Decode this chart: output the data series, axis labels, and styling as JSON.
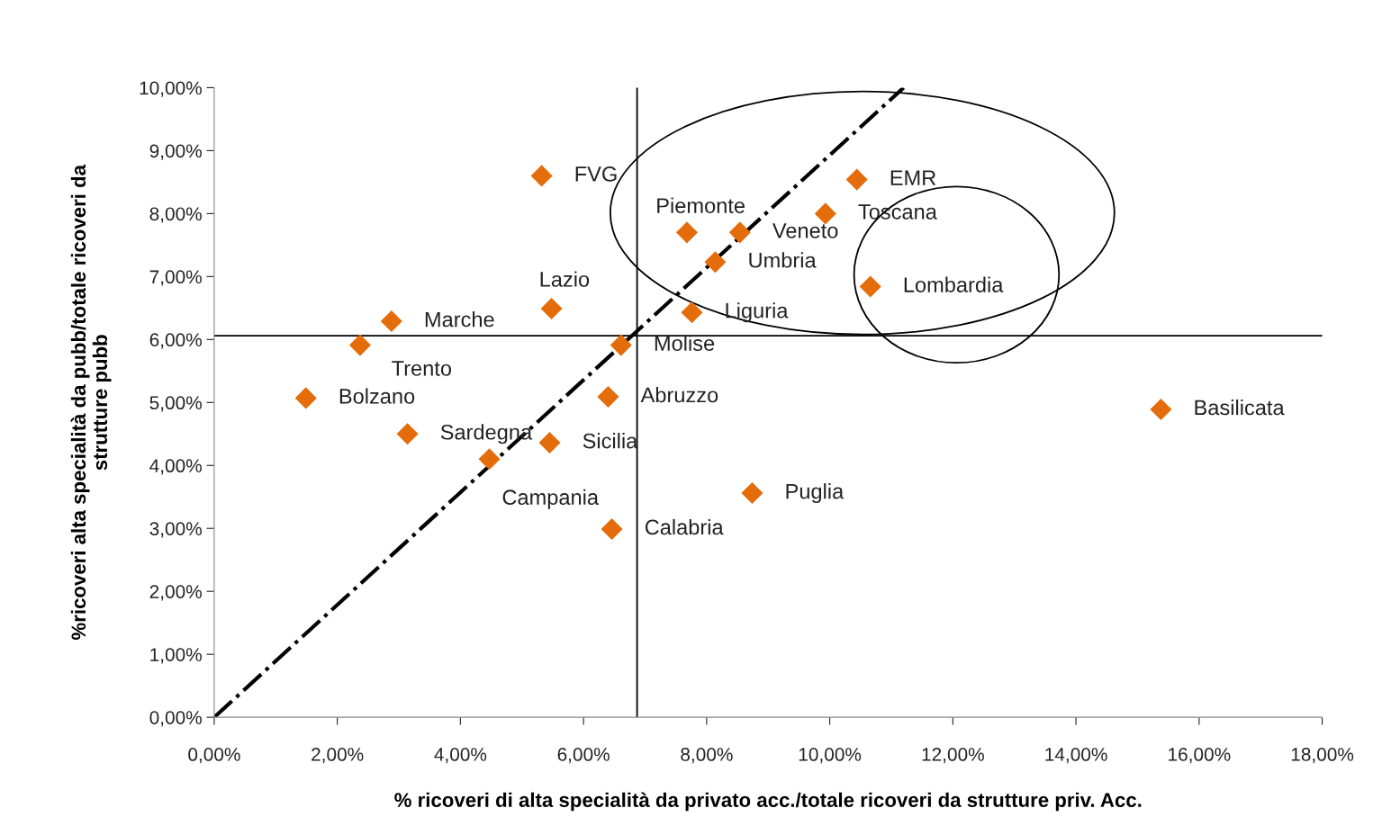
{
  "chart_data": {
    "type": "scatter",
    "xlabel": "% ricoveri di alta specialità da privato acc./totale ricoveri da strutture priv. Acc.",
    "ylabel": "%ricoveri alta specialità da pubb/totale ricoveri da\nstrutture pubb",
    "xlim": [
      0,
      18
    ],
    "xticks": [
      {
        "value": 0,
        "label": "0,00%"
      },
      {
        "value": 2,
        "label": "2,00%"
      },
      {
        "value": 4,
        "label": "4,00%"
      },
      {
        "value": 6,
        "label": "6,00%"
      },
      {
        "value": 8,
        "label": "8,00%"
      },
      {
        "value": 10,
        "label": "10,00%"
      },
      {
        "value": 12,
        "label": "12,00%"
      },
      {
        "value": 14,
        "label": "14,00%"
      },
      {
        "value": 16,
        "label": "16,00%"
      },
      {
        "value": 18,
        "label": "18,00%"
      }
    ],
    "ylim": [
      0,
      10
    ],
    "yticks": [
      {
        "value": 0,
        "label": "0,00%"
      },
      {
        "value": 1,
        "label": "1,00%"
      },
      {
        "value": 2,
        "label": "2,00%"
      },
      {
        "value": 3,
        "label": "3,00%"
      },
      {
        "value": 4,
        "label": "4,00%"
      },
      {
        "value": 5,
        "label": "5,00%"
      },
      {
        "value": 6,
        "label": "6,00%"
      },
      {
        "value": 7,
        "label": "7,00%"
      },
      {
        "value": 8,
        "label": "8,00%"
      },
      {
        "value": 9,
        "label": "9,00%"
      },
      {
        "value": 10,
        "label": "10,00%"
      }
    ],
    "grid": false,
    "legend": false,
    "series": [
      {
        "marker": "diamond",
        "color": "#e46c0a",
        "x": [
          5.32,
          10.44,
          9.93,
          7.68,
          8.54,
          8.14,
          10.66,
          5.48,
          7.76,
          2.88,
          2.37,
          6.61,
          1.49,
          6.4,
          15.38,
          3.14,
          5.45,
          4.47,
          8.74,
          6.46
        ],
        "values": [
          8.6,
          8.54,
          8.0,
          7.7,
          7.7,
          7.23,
          6.84,
          6.49,
          6.43,
          6.29,
          5.91,
          5.91,
          5.07,
          5.09,
          4.89,
          4.5,
          4.36,
          4.1,
          3.56,
          2.99
        ]
      },
      {
        "type": "line",
        "marker": "none",
        "color": "#000000",
        "line_style": "dashdot",
        "x": [
          0,
          11.2
        ],
        "values": [
          0,
          10
        ]
      }
    ],
    "ref_lines": [
      {
        "axis": "x",
        "value": 6.87,
        "color": "#000000"
      },
      {
        "axis": "y",
        "value": 6.06,
        "color": "#000000"
      }
    ],
    "annotations": [
      {
        "text": "FVG",
        "x": 5.32,
        "y": 8.6
      },
      {
        "text": "EMR",
        "x": 10.44,
        "y": 8.54
      },
      {
        "text": "Toscana",
        "x": 9.93,
        "y": 8.0
      },
      {
        "text": "Piemonte",
        "x": 7.68,
        "y": 7.7
      },
      {
        "text": "Veneto",
        "x": 8.54,
        "y": 7.7
      },
      {
        "text": "Umbria",
        "x": 8.14,
        "y": 7.23
      },
      {
        "text": "Lombardia",
        "x": 10.66,
        "y": 6.84
      },
      {
        "text": "Lazio",
        "x": 5.48,
        "y": 6.49
      },
      {
        "text": "Liguria",
        "x": 7.76,
        "y": 6.43
      },
      {
        "text": "Marche",
        "x": 2.88,
        "y": 6.29
      },
      {
        "text": "Trento",
        "x": 2.37,
        "y": 5.91
      },
      {
        "text": "Molise",
        "x": 6.61,
        "y": 5.91
      },
      {
        "text": "Bolzano",
        "x": 1.49,
        "y": 5.07
      },
      {
        "text": "Abruzzo",
        "x": 6.4,
        "y": 5.09
      },
      {
        "text": "Basilicata",
        "x": 15.38,
        "y": 4.89
      },
      {
        "text": "Sardegna",
        "x": 3.14,
        "y": 4.5
      },
      {
        "text": "Sicilia",
        "x": 5.45,
        "y": 4.36
      },
      {
        "text": "Campania",
        "x": 4.47,
        "y": 4.1
      },
      {
        "text": "Puglia",
        "x": 8.74,
        "y": 3.56
      },
      {
        "text": "Calabria",
        "x": 6.46,
        "y": 2.99
      }
    ]
  }
}
